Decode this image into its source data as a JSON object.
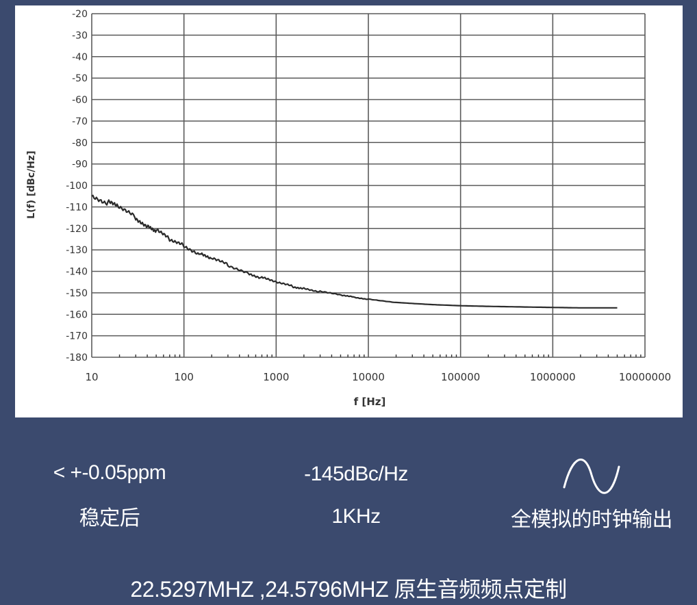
{
  "chart_data": {
    "type": "line",
    "xscale": "log",
    "xlabel": "f  [Hz]",
    "ylabel": "L(f)  [dBc/Hz]",
    "xlim": [
      10,
      10000000
    ],
    "ylim": [
      -180,
      -20
    ],
    "xticks": [
      "10",
      "100",
      "1000",
      "10000",
      "100000",
      "1000000",
      "10000000"
    ],
    "yticks": [
      "-20",
      "-30",
      "-40",
      "-50",
      "-60",
      "-70",
      "-80",
      "-90",
      "-100",
      "-110",
      "-120",
      "-130",
      "-140",
      "-150",
      "-160",
      "-170",
      "-180"
    ],
    "grid": true,
    "series": [
      {
        "x": [
          10,
          15,
          20,
          30,
          40,
          50,
          70,
          100,
          150,
          200,
          300,
          500,
          700,
          1000,
          1500,
          2000,
          3000,
          5000,
          7000,
          10000,
          20000,
          50000,
          100000,
          200000,
          500000,
          1000000,
          2000000,
          5000000
        ],
        "y": [
          -105,
          -108,
          -110,
          -115,
          -119,
          -121,
          -125,
          -128,
          -132,
          -134,
          -137,
          -141,
          -143,
          -145,
          -147,
          -148,
          -149.5,
          -151,
          -152,
          -153,
          -154.5,
          -155.5,
          -156,
          -156.3,
          -156.6,
          -156.8,
          -157,
          -157
        ],
        "color": "#2a2a2a"
      }
    ]
  },
  "stats": {
    "stability_value": "< +-0.05ppm",
    "stability_caption": "稳定后",
    "noise_value": "-145dBc/Hz",
    "noise_caption": "1KHz",
    "output_caption": "全模拟的时钟输出",
    "output_icon": "sine-wave-icon"
  },
  "footer": {
    "text": "22.5297MHZ ,24.5796MHZ 原生音频频点定制"
  },
  "colors": {
    "background": "#3b4a6e",
    "panel": "#ffffff",
    "text": "#ffffff",
    "grid": "#5a5a5a",
    "line": "#2a2a2a"
  }
}
